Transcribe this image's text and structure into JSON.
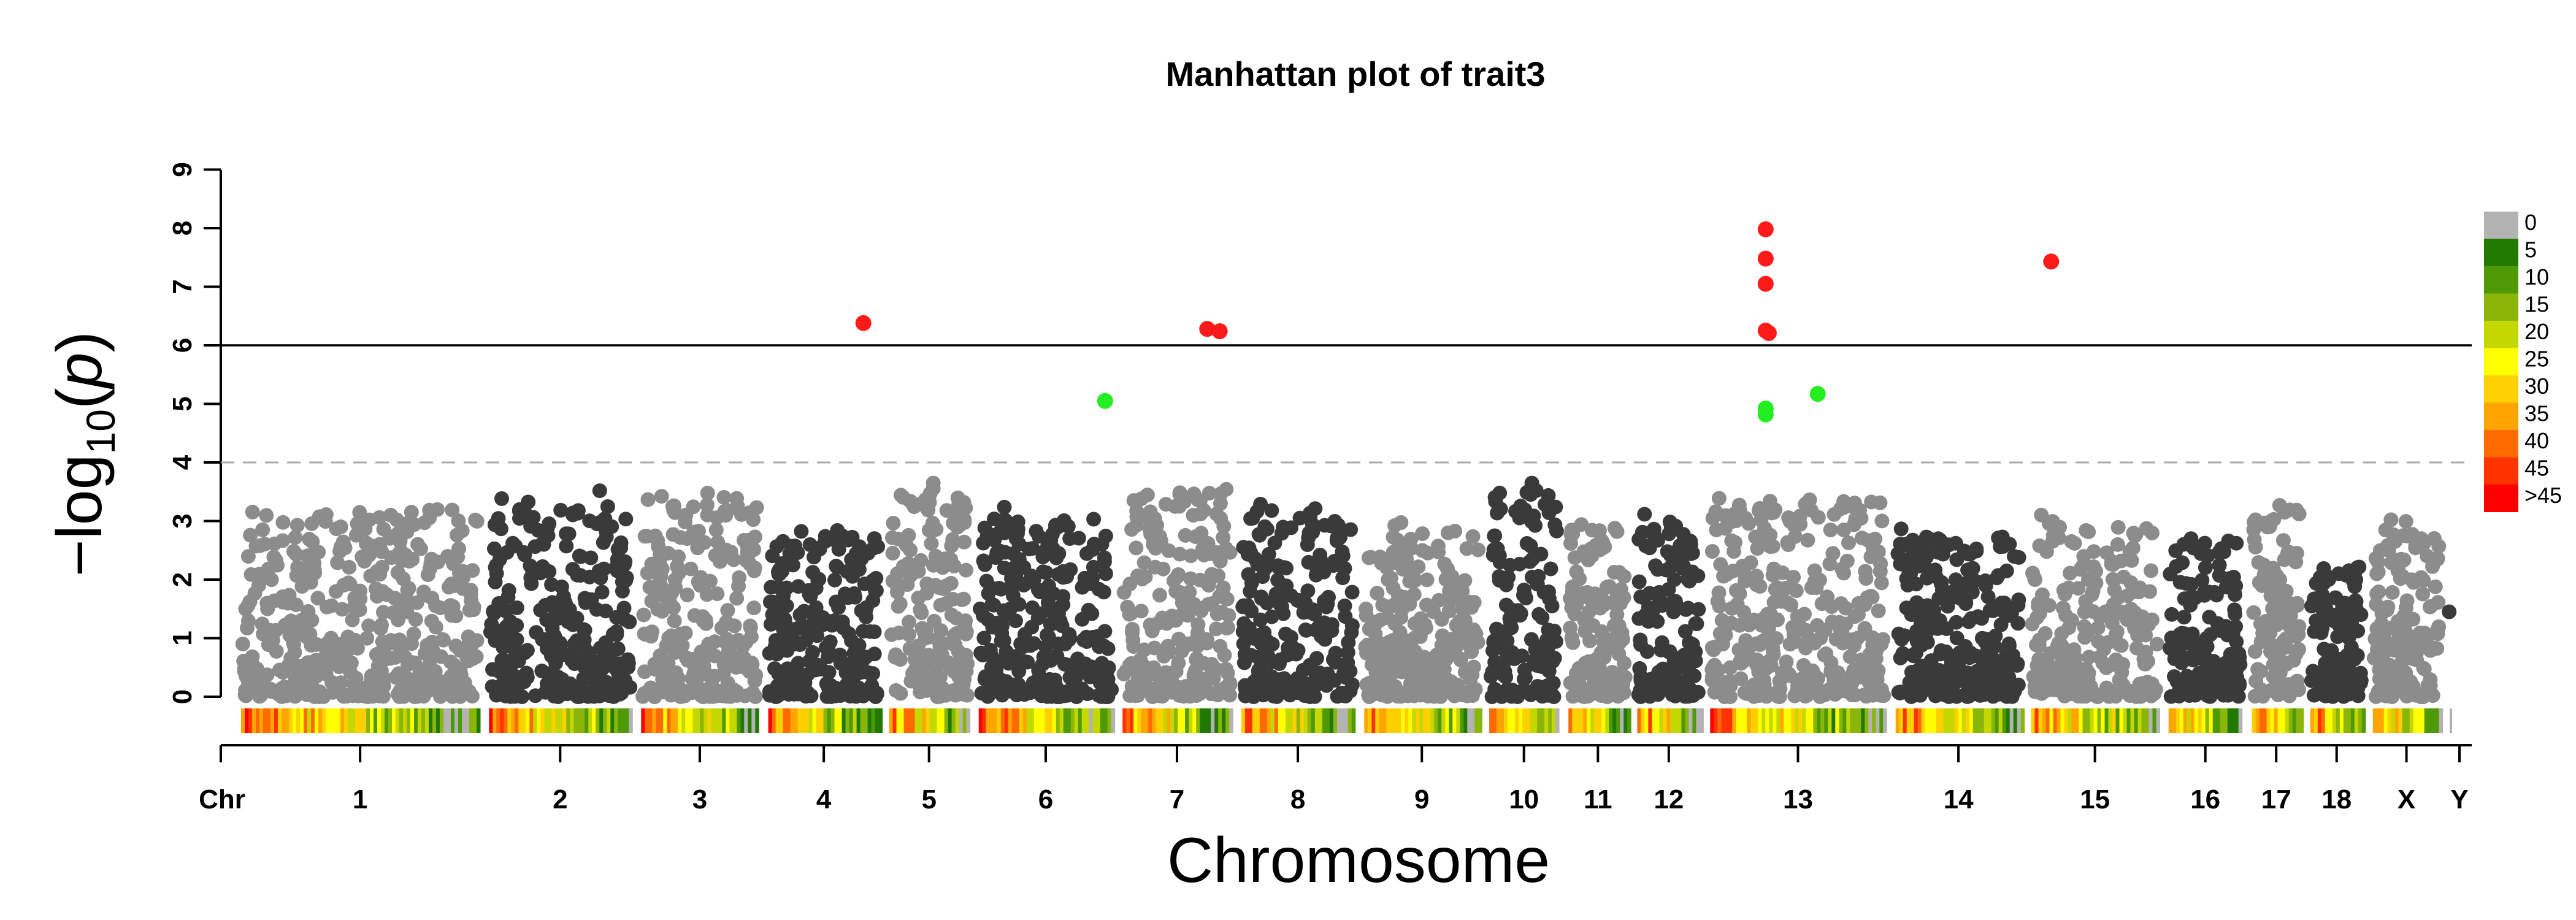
{
  "chart_data": {
    "type": "scatter",
    "subtype": "manhattan",
    "title": "Manhattan plot of trait3",
    "xlabel": "Chromosome",
    "ylabel_base": "−log",
    "ylabel_sub": "10",
    "ylabel_paren": "(",
    "ylabel_p": "p",
    "ylabel_close": ")",
    "ylim": [
      0,
      9
    ],
    "yticks": [
      "0",
      "1",
      "2",
      "3",
      "4",
      "5",
      "6",
      "7",
      "8",
      "9"
    ],
    "x_axis_prefix": "Chr",
    "genomewide_threshold": 6,
    "suggestive_threshold": 4,
    "colors": {
      "light": "#8c8c8c",
      "dark": "#3a3a3a",
      "significant": "#ff1a1a",
      "suggestive": "#22ee22"
    },
    "chromosomes": [
      {
        "name": "1",
        "start": 0,
        "end": 1190,
        "peak": 3.4,
        "shade": "light"
      },
      {
        "name": "2",
        "start": 1190,
        "end": 1920,
        "peak": 3.55,
        "shade": "dark"
      },
      {
        "name": "3",
        "start": 1920,
        "end": 2530,
        "peak": 3.65,
        "shade": "light"
      },
      {
        "name": "4",
        "start": 2530,
        "end": 3110,
        "peak": 2.95,
        "shade": "dark"
      },
      {
        "name": "5",
        "start": 3110,
        "end": 3540,
        "peak": 3.7,
        "shade": "light"
      },
      {
        "name": "6",
        "start": 3540,
        "end": 4230,
        "peak": 3.25,
        "shade": "dark"
      },
      {
        "name": "7",
        "start": 4230,
        "end": 4800,
        "peak": 3.7,
        "shade": "light"
      },
      {
        "name": "8",
        "start": 4800,
        "end": 5390,
        "peak": 3.4,
        "shade": "dark"
      },
      {
        "name": "9",
        "start": 5390,
        "end": 5990,
        "peak": 3.0,
        "shade": "light"
      },
      {
        "name": "10",
        "start": 5990,
        "end": 6370,
        "peak": 3.7,
        "shade": "dark"
      },
      {
        "name": "11",
        "start": 6370,
        "end": 6700,
        "peak": 3.05,
        "shade": "light"
      },
      {
        "name": "12",
        "start": 6700,
        "end": 7050,
        "peak": 3.15,
        "shade": "dark"
      },
      {
        "name": "13",
        "start": 7050,
        "end": 7940,
        "peak": 3.6,
        "shade": "light"
      },
      {
        "name": "14",
        "start": 7940,
        "end": 8590,
        "peak": 2.95,
        "shade": "dark"
      },
      {
        "name": "15",
        "start": 8590,
        "end": 9250,
        "peak": 3.15,
        "shade": "light"
      },
      {
        "name": "16",
        "start": 9250,
        "end": 9650,
        "peak": 2.9,
        "shade": "dark"
      },
      {
        "name": "17",
        "start": 9650,
        "end": 9930,
        "peak": 3.4,
        "shade": "light"
      },
      {
        "name": "18",
        "start": 9930,
        "end": 10230,
        "peak": 2.35,
        "shade": "dark"
      },
      {
        "name": "X",
        "start": 10230,
        "end": 10600,
        "peak": 3.05,
        "shade": "light"
      },
      {
        "name": "Y",
        "start": 10600,
        "end": 10640,
        "peak": 1.45,
        "shade": "dark"
      }
    ],
    "x_max": 10640,
    "significant_points": [
      {
        "chr": "4",
        "pos": 3010,
        "y": 6.38
      },
      {
        "chr": "7",
        "pos": 4660,
        "y": 6.28
      },
      {
        "chr": "7",
        "pos": 4720,
        "y": 6.24
      },
      {
        "chr": "13",
        "pos": 7340,
        "y": 7.98
      },
      {
        "chr": "13",
        "pos": 7340,
        "y": 7.48
      },
      {
        "chr": "13",
        "pos": 7340,
        "y": 7.05
      },
      {
        "chr": "13",
        "pos": 7340,
        "y": 6.25
      },
      {
        "chr": "13",
        "pos": 7355,
        "y": 6.21
      },
      {
        "chr": "15",
        "pos": 8710,
        "y": 7.43
      }
    ],
    "suggestive_points": [
      {
        "chr": "6",
        "pos": 4170,
        "y": 5.05
      },
      {
        "chr": "13",
        "pos": 7340,
        "y": 4.92
      },
      {
        "chr": "13",
        "pos": 7340,
        "y": 4.82
      },
      {
        "chr": "13",
        "pos": 7590,
        "y": 5.17
      }
    ],
    "density_legend": {
      "labels": [
        "0",
        "5",
        "10",
        "15",
        "20",
        "25",
        "30",
        "35",
        "40",
        "45",
        ">45"
      ],
      "colors": [
        "#b3b3b3",
        "#217a00",
        "#4e9a06",
        "#8ab60a",
        "#c4d800",
        "#ffff00",
        "#ffd000",
        "#ffa500",
        "#ff6a00",
        "#ff3300",
        "#ff0000"
      ]
    }
  }
}
